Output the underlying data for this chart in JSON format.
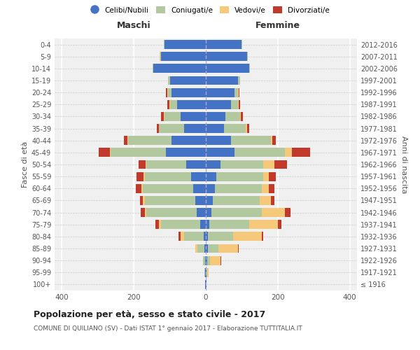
{
  "age_groups": [
    "100+",
    "95-99",
    "90-94",
    "85-89",
    "80-84",
    "75-79",
    "70-74",
    "65-69",
    "60-64",
    "55-59",
    "50-54",
    "45-49",
    "40-44",
    "35-39",
    "30-34",
    "25-29",
    "20-24",
    "15-19",
    "10-14",
    "5-9",
    "0-4"
  ],
  "birth_years": [
    "≤ 1916",
    "1917-1921",
    "1922-1926",
    "1927-1931",
    "1932-1936",
    "1937-1941",
    "1942-1946",
    "1947-1951",
    "1952-1956",
    "1957-1961",
    "1962-1966",
    "1967-1971",
    "1972-1976",
    "1977-1981",
    "1982-1986",
    "1987-1991",
    "1992-1996",
    "1997-2001",
    "2002-2006",
    "2007-2011",
    "2012-2016"
  ],
  "maschi": {
    "celibi": [
      1,
      1,
      2,
      4,
      5,
      15,
      25,
      30,
      35,
      40,
      55,
      110,
      95,
      60,
      70,
      80,
      95,
      100,
      145,
      125,
      115
    ],
    "coniugati": [
      1,
      2,
      5,
      20,
      55,
      110,
      140,
      140,
      140,
      130,
      110,
      155,
      120,
      70,
      45,
      20,
      10,
      5,
      2,
      2,
      2
    ],
    "vedovi": [
      0,
      0,
      1,
      5,
      10,
      5,
      5,
      5,
      4,
      3,
      2,
      2,
      2,
      1,
      1,
      2,
      2,
      0,
      0,
      1,
      0
    ],
    "divorziati": [
      0,
      0,
      0,
      1,
      5,
      10,
      10,
      8,
      15,
      20,
      20,
      30,
      10,
      5,
      8,
      5,
      3,
      0,
      0,
      0,
      0
    ]
  },
  "femmine": {
    "nubili": [
      1,
      1,
      3,
      5,
      5,
      10,
      15,
      20,
      25,
      30,
      40,
      80,
      70,
      50,
      55,
      70,
      80,
      90,
      120,
      115,
      100
    ],
    "coniugate": [
      1,
      2,
      8,
      30,
      70,
      110,
      140,
      130,
      130,
      130,
      120,
      140,
      110,
      60,
      40,
      20,
      10,
      5,
      2,
      2,
      1
    ],
    "vedove": [
      0,
      5,
      30,
      55,
      80,
      80,
      65,
      30,
      20,
      15,
      30,
      20,
      5,
      5,
      3,
      2,
      2,
      0,
      0,
      0,
      0
    ],
    "divorziate": [
      0,
      0,
      2,
      2,
      5,
      10,
      15,
      10,
      15,
      20,
      35,
      50,
      10,
      5,
      5,
      3,
      2,
      0,
      0,
      0,
      0
    ]
  },
  "colors": {
    "celibi": "#4472c4",
    "coniugati": "#b2c9a0",
    "vedovi": "#f5c87a",
    "divorziati": "#c0392b"
  },
  "legend_labels": [
    "Celibi/Nubili",
    "Coniugati/e",
    "Vedovi/e",
    "Divorziati/e"
  ],
  "title": "Popolazione per età, sesso e stato civile - 2017",
  "subtitle": "COMUNE DI QUILIANO (SV) - Dati ISTAT 1° gennaio 2017 - Elaborazione TUTTITALIA.IT",
  "ylabel_left": "Fasce di età",
  "ylabel_right": "Anni di nascita",
  "xlabel_left": "Maschi",
  "xlabel_right": "Femmine",
  "xlim": 420,
  "background_color": "#ffffff",
  "plot_bg_color": "#f0f0f0"
}
